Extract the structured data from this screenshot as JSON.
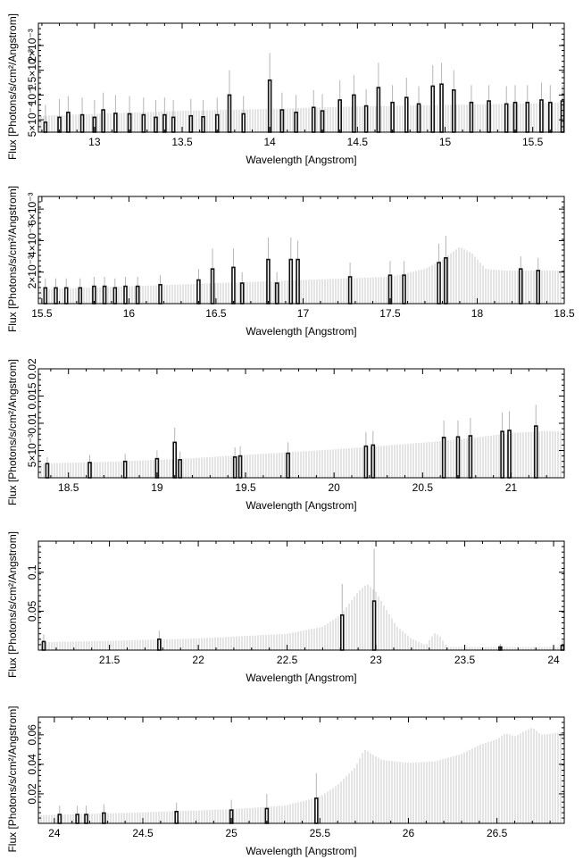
{
  "chart_data": [
    {
      "type": "bar",
      "xlabel": "Wavelength [Angstrom]",
      "ylabel": "Flux [Photons/s/cm²/Angstrom]",
      "xlim": [
        12.68,
        15.68
      ],
      "ylim": [
        0.00025,
        0.00245
      ],
      "xticks": [
        "13",
        "13.5",
        "14",
        "14.5",
        "15",
        "15.5"
      ],
      "yticks": [
        "5×10⁻⁴",
        "10⁻³",
        "1.5×10⁻³",
        "2×10⁻³"
      ],
      "model": [
        [
          12.7,
          0.00058
        ],
        [
          13.0,
          0.00062
        ],
        [
          13.5,
          0.00068
        ],
        [
          14.0,
          0.00072
        ],
        [
          14.5,
          0.00077
        ],
        [
          15.0,
          0.0008
        ],
        [
          15.5,
          0.00083
        ],
        [
          15.68,
          0.00085
        ]
      ],
      "bars": [
        [
          12.72,
          0.00045,
          0.0008
        ],
        [
          12.8,
          0.00055,
          0.00092
        ],
        [
          12.85,
          0.00065,
          0.00098
        ],
        [
          12.93,
          0.0006,
          0.00095
        ],
        [
          13.0,
          0.00055,
          0.0009
        ],
        [
          13.05,
          0.0007,
          0.00105
        ],
        [
          13.12,
          0.00063,
          0.001
        ],
        [
          13.2,
          0.00062,
          0.00098
        ],
        [
          13.28,
          0.0006,
          0.00095
        ],
        [
          13.35,
          0.00055,
          0.0009
        ],
        [
          13.4,
          0.0006,
          0.00095
        ],
        [
          13.45,
          0.00055,
          0.0009
        ],
        [
          13.55,
          0.00058,
          0.00092
        ],
        [
          13.62,
          0.00056,
          0.0009
        ],
        [
          13.7,
          0.0006,
          0.00095
        ],
        [
          13.77,
          0.001,
          0.0015
        ],
        [
          13.85,
          0.00062,
          0.00098
        ],
        [
          14.0,
          0.0013,
          0.00185
        ],
        [
          14.07,
          0.0007,
          0.00105
        ],
        [
          14.15,
          0.00065,
          0.001
        ],
        [
          14.25,
          0.00075,
          0.0011
        ],
        [
          14.3,
          0.00068,
          0.00102
        ],
        [
          14.4,
          0.0009,
          0.0013
        ],
        [
          14.48,
          0.001,
          0.0014
        ],
        [
          14.55,
          0.00078,
          0.00112
        ],
        [
          14.62,
          0.00115,
          0.00165
        ],
        [
          14.7,
          0.00085,
          0.0012
        ],
        [
          14.78,
          0.00095,
          0.00135
        ],
        [
          14.85,
          0.00082,
          0.00118
        ],
        [
          14.93,
          0.00118,
          0.0016
        ],
        [
          14.98,
          0.00122,
          0.00165
        ],
        [
          15.05,
          0.0011,
          0.0015
        ],
        [
          15.15,
          0.00085,
          0.0012
        ],
        [
          15.25,
          0.00088,
          0.0012
        ],
        [
          15.35,
          0.00082,
          0.00118
        ],
        [
          15.4,
          0.00085,
          0.0012
        ],
        [
          15.47,
          0.00085,
          0.0012
        ],
        [
          15.55,
          0.0009,
          0.00125
        ],
        [
          15.6,
          0.00085,
          0.0012
        ],
        [
          15.67,
          0.00088,
          0.0012
        ]
      ]
    },
    {
      "type": "bar",
      "xlabel": "Wavelength [Angstrom]",
      "ylabel": "Flux [Photons/s/cm²/Angstrom]",
      "xlim": [
        15.48,
        18.5
      ],
      "ylim": [
        0,
        0.0068
      ],
      "xticks": [
        "15.5",
        "16",
        "16.5",
        "17",
        "17.5",
        "18",
        "18.5"
      ],
      "yticks": [
        "2×10⁻³",
        "4×10⁻³",
        "6×10⁻³"
      ],
      "model": [
        [
          15.48,
          0.0009
        ],
        [
          16.0,
          0.0011
        ],
        [
          16.5,
          0.0013
        ],
        [
          17.0,
          0.0015
        ],
        [
          17.5,
          0.0017
        ],
        [
          17.7,
          0.0022
        ],
        [
          17.8,
          0.0028
        ],
        [
          17.9,
          0.0036
        ],
        [
          17.97,
          0.0032
        ],
        [
          18.05,
          0.0022
        ],
        [
          18.15,
          0.0021
        ],
        [
          18.5,
          0.0021
        ]
      ],
      "bars": [
        [
          15.52,
          0.001,
          0.0016
        ],
        [
          15.58,
          0.001,
          0.0016
        ],
        [
          15.64,
          0.001,
          0.0016
        ],
        [
          15.72,
          0.001,
          0.0016
        ],
        [
          15.8,
          0.0011,
          0.0017
        ],
        [
          15.86,
          0.0011,
          0.0017
        ],
        [
          15.92,
          0.001,
          0.0016
        ],
        [
          15.98,
          0.0011,
          0.0017
        ],
        [
          16.05,
          0.0011,
          0.0017
        ],
        [
          16.18,
          0.0012,
          0.0018
        ],
        [
          16.4,
          0.0015,
          0.0022
        ],
        [
          16.48,
          0.0022,
          0.0035
        ],
        [
          16.6,
          0.0023,
          0.0035
        ],
        [
          16.65,
          0.0013,
          0.002
        ],
        [
          16.8,
          0.0028,
          0.0042
        ],
        [
          16.85,
          0.0013,
          0.002
        ],
        [
          16.93,
          0.0028,
          0.0042
        ],
        [
          16.97,
          0.0028,
          0.004
        ],
        [
          17.27,
          0.0017,
          0.0026
        ],
        [
          17.5,
          0.0018,
          0.0027
        ],
        [
          17.58,
          0.0018,
          0.0027
        ],
        [
          17.78,
          0.0026,
          0.0038
        ],
        [
          17.82,
          0.0029,
          0.0043
        ],
        [
          18.25,
          0.0022,
          0.003
        ],
        [
          18.35,
          0.0021,
          0.0029
        ]
      ]
    },
    {
      "type": "bar",
      "xlabel": "Wavelength [Angstrom]",
      "ylabel": "Flux [Photons/s/cm²/Angstrom]",
      "xlim": [
        18.33,
        21.3
      ],
      "ylim": [
        0,
        0.02
      ],
      "xticks": [
        "18.5",
        "19",
        "19.5",
        "20",
        "20.5",
        "21"
      ],
      "yticks": [
        "5×10⁻³",
        "0.01",
        "0.015",
        "0.02"
      ],
      "model": [
        [
          18.33,
          0.0026
        ],
        [
          18.8,
          0.003
        ],
        [
          19.2,
          0.0036
        ],
        [
          19.6,
          0.0044
        ],
        [
          20.0,
          0.0052
        ],
        [
          20.4,
          0.0062
        ],
        [
          20.6,
          0.0067
        ],
        [
          20.8,
          0.0074
        ],
        [
          21.0,
          0.0082
        ],
        [
          21.2,
          0.0086
        ],
        [
          21.3,
          0.0085
        ]
      ],
      "bars": [
        [
          18.38,
          0.0026,
          0.0038
        ],
        [
          18.62,
          0.0028,
          0.0042
        ],
        [
          18.82,
          0.003,
          0.0044
        ],
        [
          19.0,
          0.0035,
          0.005
        ],
        [
          19.1,
          0.0065,
          0.0092
        ],
        [
          19.13,
          0.0033,
          0.0048
        ],
        [
          19.44,
          0.0038,
          0.0056
        ],
        [
          19.47,
          0.004,
          0.0058
        ],
        [
          19.74,
          0.0045,
          0.0065
        ],
        [
          20.18,
          0.0058,
          0.0084
        ],
        [
          20.22,
          0.006,
          0.0086
        ],
        [
          20.62,
          0.0074,
          0.0105
        ],
        [
          20.7,
          0.0075,
          0.0105
        ],
        [
          20.77,
          0.0077,
          0.011
        ],
        [
          20.95,
          0.0085,
          0.012
        ],
        [
          20.99,
          0.0087,
          0.0122
        ],
        [
          21.14,
          0.0095,
          0.0134
        ]
      ]
    },
    {
      "type": "bar",
      "xlabel": "Wavelength [Angstrom]",
      "ylabel": "Flux [Photons/s/cm²/Angstrom]",
      "xlim": [
        21.1,
        24.06
      ],
      "ylim": [
        0,
        0.14
      ],
      "xticks": [
        "21.5",
        "22",
        "22.5",
        "23",
        "23.5",
        "24"
      ],
      "yticks": [
        "0.05",
        "0.1"
      ],
      "model": [
        [
          21.1,
          0.01
        ],
        [
          21.5,
          0.012
        ],
        [
          22.0,
          0.015
        ],
        [
          22.5,
          0.021
        ],
        [
          22.7,
          0.03
        ],
        [
          22.8,
          0.045
        ],
        [
          22.9,
          0.075
        ],
        [
          22.95,
          0.085
        ],
        [
          23.0,
          0.075
        ],
        [
          23.05,
          0.055
        ],
        [
          23.12,
          0.03
        ],
        [
          23.2,
          0.015
        ],
        [
          23.28,
          0.006
        ],
        [
          23.33,
          0.022
        ],
        [
          23.36,
          0.018
        ],
        [
          23.4,
          0.004
        ],
        [
          24.06,
          0.004
        ]
      ],
      "bars": [
        [
          21.13,
          0.011,
          0.02
        ],
        [
          21.78,
          0.014,
          0.025
        ],
        [
          22.81,
          0.045,
          0.085
        ],
        [
          22.99,
          0.063,
          0.13
        ],
        [
          23.7,
          0.004,
          0.008
        ],
        [
          24.05,
          0.006,
          0.012
        ]
      ]
    },
    {
      "type": "bar",
      "xlabel": "Wavelength [Angstrom]",
      "ylabel": "Flux [Photons/s/cm²/Angstrom]",
      "xlim": [
        23.91,
        26.88
      ],
      "ylim": [
        0,
        0.072
      ],
      "xticks": [
        "24",
        "24.5",
        "25",
        "25.5",
        "26",
        "26.5"
      ],
      "yticks": [
        "0.02",
        "0.04",
        "0.06"
      ],
      "model": [
        [
          23.91,
          0.0055
        ],
        [
          24.5,
          0.0075
        ],
        [
          25.0,
          0.0095
        ],
        [
          25.3,
          0.012
        ],
        [
          25.5,
          0.018
        ],
        [
          25.6,
          0.026
        ],
        [
          25.7,
          0.038
        ],
        [
          25.75,
          0.05
        ],
        [
          25.85,
          0.043
        ],
        [
          26.0,
          0.041
        ],
        [
          26.15,
          0.042
        ],
        [
          26.3,
          0.047
        ],
        [
          26.4,
          0.053
        ],
        [
          26.5,
          0.057
        ],
        [
          26.55,
          0.061
        ],
        [
          26.6,
          0.059
        ],
        [
          26.7,
          0.065
        ],
        [
          26.75,
          0.06
        ],
        [
          26.88,
          0.062
        ]
      ],
      "bars": [
        [
          24.03,
          0.006,
          0.012
        ],
        [
          24.13,
          0.006,
          0.012
        ],
        [
          24.18,
          0.006,
          0.012
        ],
        [
          24.28,
          0.007,
          0.013
        ],
        [
          24.69,
          0.008,
          0.014
        ],
        [
          25.0,
          0.009,
          0.016
        ],
        [
          25.2,
          0.01,
          0.02
        ],
        [
          25.48,
          0.017,
          0.034
        ]
      ]
    }
  ]
}
